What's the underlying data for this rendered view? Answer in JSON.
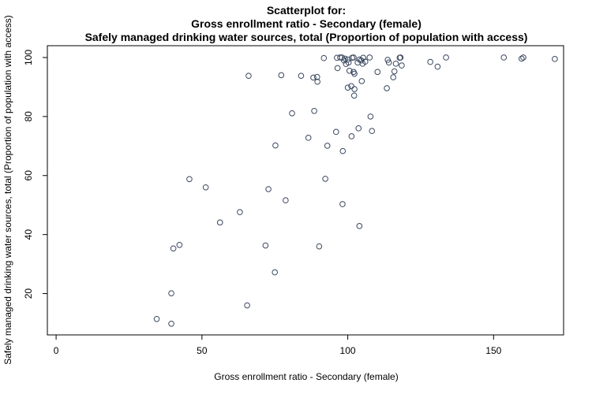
{
  "chart_data": {
    "type": "scatter",
    "title": [
      "Scatterplot for:",
      "Gross enrollment ratio - Secondary (female)",
      "Safely managed drinking water sources, total (Proportion of population with access)"
    ],
    "xlabel": "Gross enrollment ratio - Secondary (female)",
    "ylabel": "Safely managed drinking water sources, total (Proportion of population with access)",
    "xlim": [
      -3,
      174
    ],
    "ylim": [
      6,
      104
    ],
    "xticks": [
      0,
      50,
      100,
      150
    ],
    "yticks": [
      20,
      40,
      60,
      80,
      100
    ],
    "grid": false,
    "point_color": "#3a4860",
    "points": [
      [
        34.5,
        11.4
      ],
      [
        39.5,
        9.8
      ],
      [
        39.5,
        20.1
      ],
      [
        40.2,
        35.3
      ],
      [
        42.3,
        36.5
      ],
      [
        45.7,
        58.8
      ],
      [
        51.3,
        56.0
      ],
      [
        56.2,
        44.1
      ],
      [
        63.0,
        47.6
      ],
      [
        65.5,
        16.0
      ],
      [
        66.0,
        93.8
      ],
      [
        71.8,
        36.3
      ],
      [
        72.8,
        55.4
      ],
      [
        75.0,
        27.2
      ],
      [
        75.2,
        70.2
      ],
      [
        77.2,
        94.0
      ],
      [
        78.7,
        51.6
      ],
      [
        80.9,
        81.1
      ],
      [
        84.0,
        93.8
      ],
      [
        86.5,
        72.8
      ],
      [
        88.2,
        93.2
      ],
      [
        88.5,
        81.9
      ],
      [
        89.5,
        93.4
      ],
      [
        89.6,
        91.8
      ],
      [
        90.2,
        36.0
      ],
      [
        91.8,
        99.8
      ],
      [
        92.3,
        58.9
      ],
      [
        93.0,
        70.1
      ],
      [
        96.0,
        74.8
      ],
      [
        96.3,
        99.9
      ],
      [
        96.5,
        96.4
      ],
      [
        97.4,
        100.0
      ],
      [
        98.0,
        100.0
      ],
      [
        98.2,
        50.3
      ],
      [
        98.3,
        68.3
      ],
      [
        98.7,
        99.0
      ],
      [
        99.0,
        99.6
      ],
      [
        99.4,
        97.8
      ],
      [
        100.0,
        99.3
      ],
      [
        100.3,
        98.3
      ],
      [
        100.6,
        95.5
      ],
      [
        100.0,
        89.8
      ],
      [
        101.2,
        90.3
      ],
      [
        101.3,
        73.3
      ],
      [
        101.5,
        99.9
      ],
      [
        102.0,
        100.0
      ],
      [
        102.0,
        95.1
      ],
      [
        102.2,
        87.1
      ],
      [
        102.3,
        94.5
      ],
      [
        102.3,
        89.3
      ],
      [
        103.4,
        98.3
      ],
      [
        103.7,
        76.0
      ],
      [
        104.0,
        42.9
      ],
      [
        104.0,
        99.3
      ],
      [
        104.6,
        99.0
      ],
      [
        104.8,
        92.0
      ],
      [
        105.1,
        97.9
      ],
      [
        105.3,
        99.9
      ],
      [
        106.0,
        98.6
      ],
      [
        107.5,
        100.0
      ],
      [
        107.8,
        80.0
      ],
      [
        108.3,
        75.1
      ],
      [
        110.2,
        95.1
      ],
      [
        113.4,
        89.6
      ],
      [
        113.7,
        99.2
      ],
      [
        114.1,
        98.3
      ],
      [
        115.6,
        93.3
      ],
      [
        116.0,
        95.3
      ],
      [
        116.5,
        97.9
      ],
      [
        117.8,
        99.9
      ],
      [
        118.1,
        100.0
      ],
      [
        118.5,
        97.3
      ],
      [
        128.3,
        98.5
      ],
      [
        130.8,
        96.9
      ],
      [
        133.7,
        100.0
      ],
      [
        153.5,
        100.0
      ],
      [
        159.6,
        99.6
      ],
      [
        160.2,
        100.0
      ],
      [
        171.0,
        99.5
      ]
    ]
  }
}
